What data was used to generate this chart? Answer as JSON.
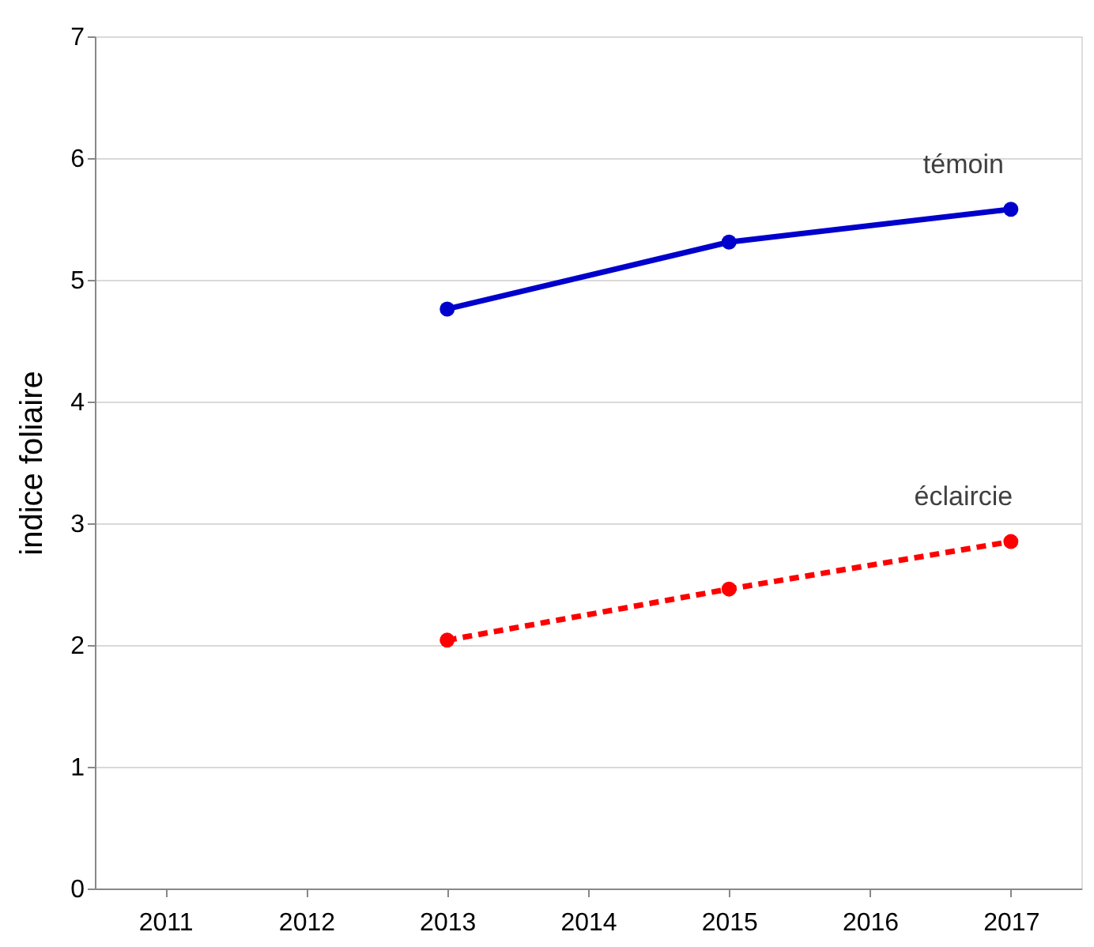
{
  "chart_data": {
    "type": "line",
    "ylabel": "indice foliaire",
    "categories": [
      "2011",
      "2012",
      "2013",
      "2014",
      "2015",
      "2016",
      "2017"
    ],
    "series": [
      {
        "name": "témoin",
        "color": "#0000cc",
        "line_style": "solid",
        "values": [
          null,
          null,
          4.76,
          null,
          5.31,
          null,
          5.58
        ]
      },
      {
        "name": "éclaircie",
        "color": "#ff0000",
        "line_style": "dashed",
        "values": [
          null,
          null,
          2.04,
          null,
          2.46,
          null,
          2.85
        ]
      }
    ],
    "ylim": [
      0,
      7
    ],
    "yticks": [
      0,
      1,
      2,
      3,
      4,
      5,
      6,
      7
    ],
    "grid": "y",
    "legend": false,
    "marker": "circle"
  }
}
